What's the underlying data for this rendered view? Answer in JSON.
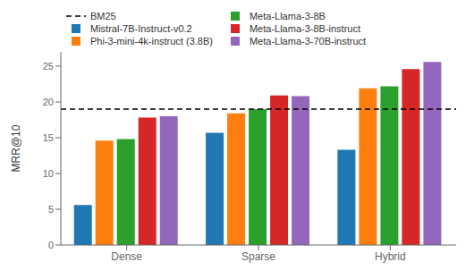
{
  "chart_data": {
    "type": "bar",
    "categories": [
      "Dense",
      "Sparse",
      "Hybrid"
    ],
    "series": [
      {
        "name": "BM25",
        "type": "hline",
        "color": "#000000",
        "line_style": "dashed",
        "value": 19.0
      },
      {
        "name": "Mistral-7B-Instruct-v0.2",
        "type": "bar",
        "color": "#1f77b4",
        "values": [
          5.6,
          15.7,
          13.3
        ]
      },
      {
        "name": "Phi-3-mini-4k-instruct (3.8B)",
        "type": "bar",
        "color": "#ff7f0e",
        "values": [
          14.6,
          18.4,
          21.9
        ]
      },
      {
        "name": "Meta-Llama-3-8B",
        "type": "bar",
        "color": "#2ca02c",
        "values": [
          14.8,
          19.0,
          22.2
        ]
      },
      {
        "name": "Meta-Llama-3-8B-instruct",
        "type": "bar",
        "color": "#d62728",
        "values": [
          17.8,
          20.9,
          24.6
        ]
      },
      {
        "name": "Meta-Llama-3-70B-instruct",
        "type": "bar",
        "color": "#9467bd",
        "values": [
          18.0,
          20.8,
          25.6
        ]
      }
    ],
    "ylabel": "MRR@10",
    "ylim": [
      0,
      27
    ],
    "yticks": [
      0,
      5,
      10,
      15,
      20,
      25
    ],
    "grid": false,
    "legend": "upper left"
  }
}
